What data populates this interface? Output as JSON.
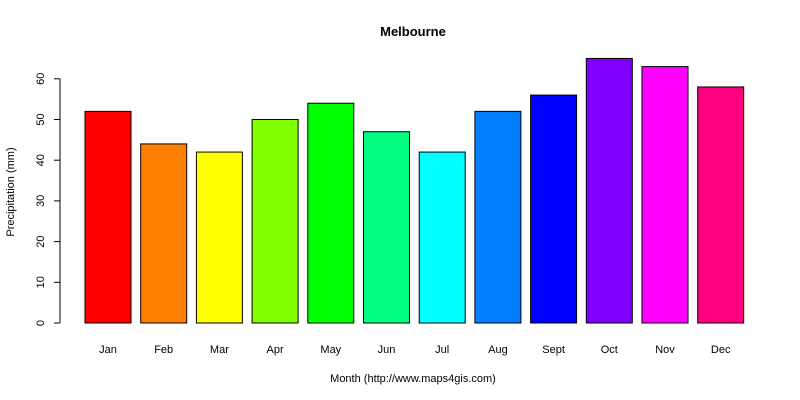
{
  "chart_data": {
    "type": "bar",
    "title": "Melbourne",
    "xlabel": "Month (http://www.maps4gis.com)",
    "ylabel": "Precipitation (mm)",
    "categories": [
      "Jan",
      "Feb",
      "Mar",
      "Apr",
      "May",
      "Jun",
      "Jul",
      "Aug",
      "Sept",
      "Oct",
      "Nov",
      "Dec"
    ],
    "values": [
      52,
      44,
      42,
      50,
      54,
      47,
      42,
      52,
      56,
      65,
      63,
      58
    ],
    "colors": [
      "#ff0000",
      "#ff8000",
      "#ffff00",
      "#80ff00",
      "#00ff00",
      "#00ff80",
      "#00ffff",
      "#0080ff",
      "#0000ff",
      "#8000ff",
      "#ff00ff",
      "#ff0080"
    ],
    "ylim": [
      0,
      65
    ],
    "yticks": [
      0,
      10,
      20,
      30,
      40,
      50,
      60
    ],
    "grid": false,
    "legend": "none"
  }
}
